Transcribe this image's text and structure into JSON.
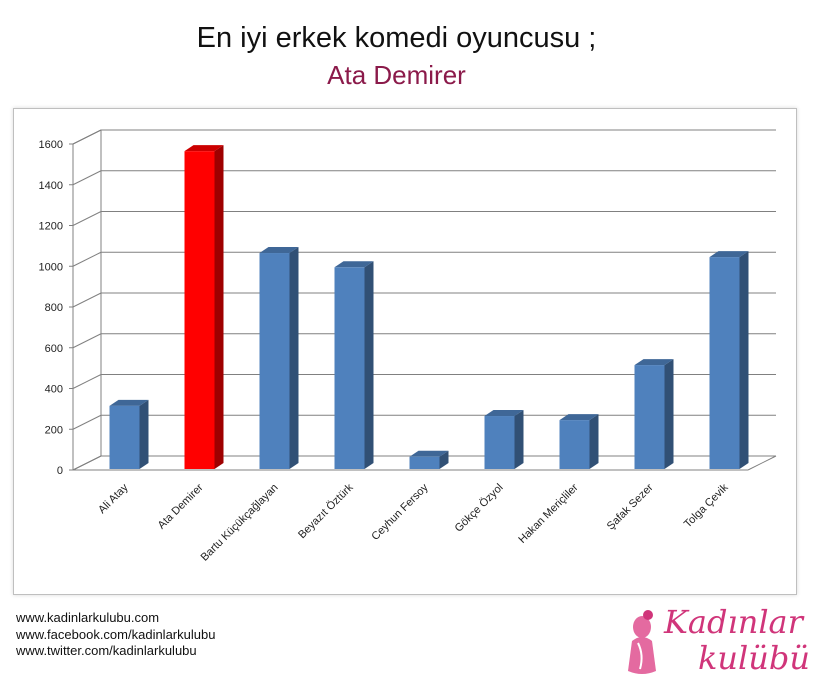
{
  "header": {
    "title": "En iyi erkek komedi oyuncusu ;",
    "subtitle": "Ata Demirer"
  },
  "chart_data": {
    "type": "bar",
    "title": "",
    "xlabel": "",
    "ylabel": "",
    "ylim": [
      0,
      1600
    ],
    "yticks": [
      0,
      200,
      400,
      600,
      800,
      1000,
      1200,
      1400,
      1600
    ],
    "grid": true,
    "legend": "none",
    "style": "3d-column",
    "categories": [
      "Ali Atay",
      "Ata Demirer",
      "Bartu Küçükçağlayan",
      "Beyazıt Öztürk",
      "Ceyhun Fersoy",
      "Gökçe Özyol",
      "Hakan Meriçliler",
      "Şafak Sezer",
      "Tolga Çevik"
    ],
    "values": [
      310,
      1560,
      1060,
      990,
      60,
      260,
      240,
      510,
      1040
    ],
    "colors": {
      "default": "#4f81bd",
      "highlight": "#ff0000"
    },
    "highlight_index": 1
  },
  "footer": {
    "links": [
      "www.kadinlarkulubu.com",
      "www.facebook.com/kadinlarkulubu",
      "www.twitter.com/kadinlarkulubu"
    ],
    "logo_line1": "Kadınlar",
    "logo_line2": "kulübü"
  }
}
